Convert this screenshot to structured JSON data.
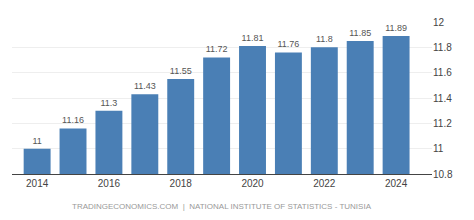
{
  "chart_data": {
    "type": "bar",
    "x": [
      2014,
      2015,
      2016,
      2017,
      2018,
      2019,
      2020,
      2021,
      2022,
      2023,
      2024
    ],
    "values": [
      11.0,
      11.16,
      11.3,
      11.43,
      11.55,
      11.72,
      11.81,
      11.76,
      11.8,
      11.85,
      11.89
    ],
    "color": "#4a7fb5",
    "xlim": [
      2013.3,
      2025.0
    ],
    "xticks": [
      2014,
      2016,
      2018,
      2020,
      2022,
      2024
    ],
    "ylim": [
      10.8,
      12.0
    ],
    "yticks": [
      10.8,
      11,
      11.2,
      11.4,
      11.6,
      11.8,
      12
    ],
    "grid": true,
    "data_labels": true,
    "annotations": [
      "TRADINGECONOMICS.COM  |  NATIONAL INSTITUTE OF STATISTICS - TUNISIA"
    ]
  }
}
